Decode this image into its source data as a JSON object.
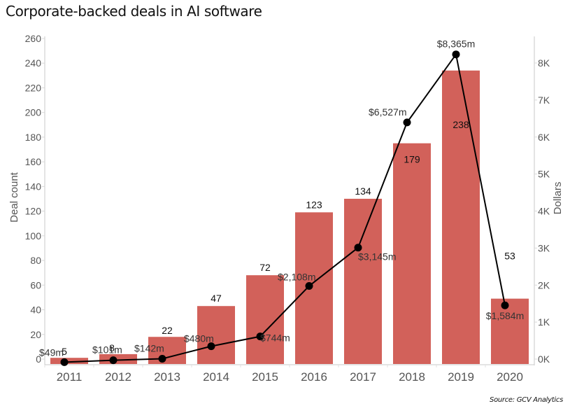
{
  "title": "Corporate-backed deals in AI software",
  "source": "Source: GCV Analytics",
  "chart_data": {
    "type": "bar",
    "title": "Corporate-backed deals in AI software",
    "categories": [
      "2011",
      "2012",
      "2013",
      "2014",
      "2015",
      "2016",
      "2017",
      "2018",
      "2019",
      "2020"
    ],
    "series": [
      {
        "name": "Deal count",
        "type": "bar",
        "axis": "left",
        "color": "#D2615A",
        "values": [
          5,
          8,
          22,
          47,
          72,
          123,
          134,
          179,
          238,
          53
        ],
        "labels": [
          "5",
          "8",
          "22",
          "47",
          "72",
          "123",
          "134",
          "179",
          "238",
          "53"
        ]
      },
      {
        "name": "Dollars",
        "type": "line",
        "axis": "right",
        "color": "#000000",
        "values": [
          49,
          101,
          142,
          480,
          744,
          2108,
          3145,
          6527,
          8365,
          1584
        ],
        "labels": [
          "$49m",
          "$101m",
          "$142m",
          "$480m",
          "$744m",
          "$2,108m",
          "$3,145m",
          "$6,527m",
          "$8,365m",
          "$1,584m"
        ]
      }
    ],
    "ylabel": "Deal count",
    "ylim": [
      0,
      260
    ],
    "yticks": [
      0,
      20,
      40,
      60,
      80,
      100,
      120,
      140,
      160,
      180,
      200,
      220,
      240,
      260
    ],
    "y2label": "Dollars",
    "y2lim": [
      0,
      8000
    ],
    "y2ticks": [
      0,
      1000,
      2000,
      3000,
      4000,
      5000,
      6000,
      7000,
      8000
    ],
    "y2ticklabels": [
      "0K",
      "1K",
      "2K",
      "3K",
      "4K",
      "5K",
      "6K",
      "7K",
      "8K"
    ],
    "xlabel": "",
    "grid": false,
    "legend": "none"
  }
}
